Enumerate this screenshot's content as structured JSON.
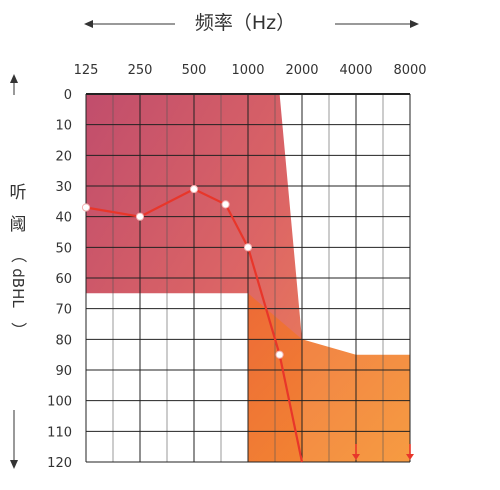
{
  "chart_data": {
    "type": "line",
    "title": "频率（Hz）",
    "xlabel": "频率（Hz）",
    "ylabel": [
      "听",
      "阈",
      "（",
      "dBHL",
      "）"
    ],
    "x_categories": [
      "125",
      "250",
      "500",
      "1000",
      "2000",
      "4000",
      "8000"
    ],
    "y_ticks": [
      "0",
      "10",
      "20",
      "30",
      "40",
      "50",
      "60",
      "70",
      "80",
      "90",
      "100",
      "110",
      "120"
    ],
    "ylim": [
      0,
      120
    ],
    "y_inverted": true,
    "grid": true,
    "series": [
      {
        "name": "",
        "color": "#e8362a",
        "points": [
          {
            "x": "125",
            "y": 37
          },
          {
            "x": "250",
            "y": 40
          },
          {
            "x": "500",
            "y": 31
          },
          {
            "x": "750",
            "y": 36
          },
          {
            "x": "1000",
            "y": 50
          },
          {
            "x": "1500",
            "y": 85
          },
          {
            "x": "2000",
            "y": 120
          }
        ],
        "no_response_markers": [
          {
            "x": "4000",
            "y": 120
          },
          {
            "x": "8000",
            "y": 120
          }
        ]
      }
    ],
    "shaded_regions": [
      {
        "color": "#c33d55",
        "polygon": [
          [
            "125",
            0
          ],
          [
            "1500",
            0
          ],
          [
            "2000",
            80
          ],
          [
            "2000",
            120
          ],
          [
            "1000",
            120
          ],
          [
            "1000",
            65
          ],
          [
            "125",
            65
          ]
        ]
      },
      {
        "color": "#f07a2a",
        "polygon": [
          [
            "1000",
            65
          ],
          [
            "2000",
            80
          ],
          [
            "4000",
            85
          ],
          [
            "8000",
            85
          ],
          [
            "8000",
            120
          ],
          [
            "1000",
            120
          ]
        ]
      }
    ]
  }
}
